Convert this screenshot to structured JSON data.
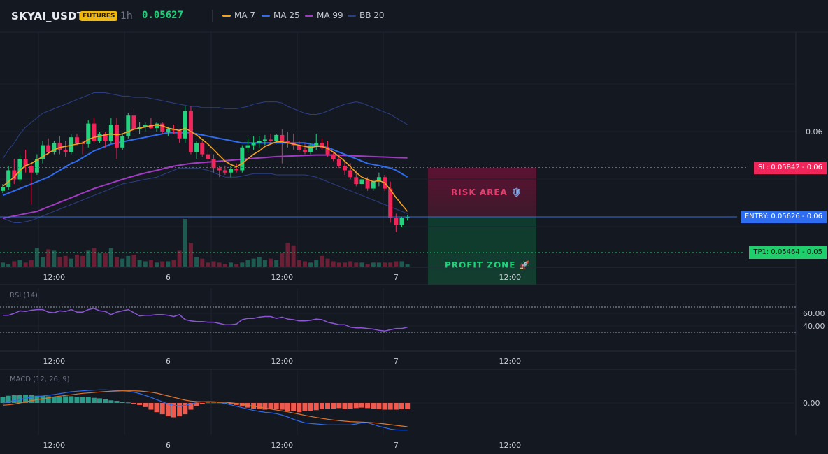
{
  "header": {
    "symbol": "SKYAI_USDT",
    "badge": "FUTURES",
    "timeframe": "1h",
    "last_price": "0.05627",
    "legend": [
      {
        "label": "MA 7",
        "color": "#f7a21b"
      },
      {
        "label": "MA 25",
        "color": "#2f6df0"
      },
      {
        "label": "MA 99",
        "color": "#a23bc4"
      },
      {
        "label": "BB 20",
        "color": "#2c3f86"
      }
    ]
  },
  "price_axis": {
    "labels": [
      "0.06"
    ]
  },
  "levels": {
    "sl": {
      "value": 0.05842,
      "tag": "SL: 0.05842 - 0.06",
      "color": "#f0265b"
    },
    "entry": {
      "value": 0.05626,
      "tag": "ENTRY: 0.05626 - 0.06",
      "color": "#2f6df0"
    },
    "tp1": {
      "value": 0.05464,
      "tag": "TP1: 0.05464 - 0.05",
      "color": "#1fcf6b"
    }
  },
  "zones": {
    "risk": {
      "label": "RISK AREA",
      "icon": "shield-icon"
    },
    "profit": {
      "label": "PROFIT ZONE",
      "icon": "rocket-icon"
    }
  },
  "time_axis": {
    "ticks": [
      {
        "i": 9,
        "label": "12:00"
      },
      {
        "i": 29,
        "label": "6"
      },
      {
        "i": 49,
        "label": "12:00"
      },
      {
        "i": 69,
        "label": "7"
      },
      {
        "i": 89,
        "label": "12:00"
      }
    ]
  },
  "rsi_panel": {
    "title": "RSI (14)",
    "axis": [
      "60.00",
      "40.00"
    ],
    "upper": 70,
    "lower": 30,
    "color": "#8b55d6"
  },
  "macd_panel": {
    "title": "MACD (12, 26, 9)",
    "axis": [
      "0.00"
    ],
    "macd_color": "#2f6df0",
    "signal_color": "#e0742a",
    "hist_pos_color": "#2a9d8a",
    "hist_neg_color": "#f05a4e"
  },
  "chart_data": {
    "type": "candlestick",
    "x_start_index": 0,
    "candles": [
      [
        0.0574,
        0.0577,
        0.0573,
        0.05755
      ],
      [
        0.05755,
        0.0585,
        0.05745,
        0.0583
      ],
      [
        0.0583,
        0.0588,
        0.0577,
        0.0579
      ],
      [
        0.0579,
        0.059,
        0.0578,
        0.0588
      ],
      [
        0.0588,
        0.0592,
        0.0582,
        0.0585
      ],
      [
        0.0585,
        0.0586,
        0.0568,
        0.0582
      ],
      [
        0.0582,
        0.059,
        0.0581,
        0.0588
      ],
      [
        0.0588,
        0.0596,
        0.0586,
        0.0594
      ],
      [
        0.0594,
        0.0597,
        0.059,
        0.0591
      ],
      [
        0.0591,
        0.0596,
        0.059,
        0.0595
      ],
      [
        0.0595,
        0.0598,
        0.059,
        0.0592
      ],
      [
        0.0592,
        0.0596,
        0.0589,
        0.0591
      ],
      [
        0.0591,
        0.0599,
        0.059,
        0.05975
      ],
      [
        0.05975,
        0.0599,
        0.0594,
        0.0595
      ],
      [
        0.0595,
        0.0596,
        0.059,
        0.05945
      ],
      [
        0.05945,
        0.0605,
        0.0593,
        0.06035
      ],
      [
        0.06035,
        0.0606,
        0.0595,
        0.0596
      ],
      [
        0.0596,
        0.06,
        0.0595,
        0.0599
      ],
      [
        0.0599,
        0.06,
        0.0593,
        0.0596
      ],
      [
        0.0596,
        0.0606,
        0.0595,
        0.0603
      ],
      [
        0.0603,
        0.0606,
        0.0588,
        0.0593
      ],
      [
        0.0593,
        0.0599,
        0.0592,
        0.0598
      ],
      [
        0.0598,
        0.0608,
        0.0597,
        0.0607
      ],
      [
        0.0607,
        0.061,
        0.06,
        0.0601
      ],
      [
        0.0601,
        0.0604,
        0.0599,
        0.0602
      ],
      [
        0.0602,
        0.0604,
        0.06,
        0.0603
      ],
      [
        0.0603,
        0.0606,
        0.0601,
        0.06015
      ],
      [
        0.06015,
        0.0604,
        0.06,
        0.06035
      ],
      [
        0.06035,
        0.0604,
        0.0599,
        0.06
      ],
      [
        0.06,
        0.0602,
        0.0598,
        0.0601
      ],
      [
        0.0601,
        0.0603,
        0.0599,
        0.06005
      ],
      [
        0.06005,
        0.0601,
        0.0595,
        0.0597
      ],
      [
        0.0597,
        0.0611,
        0.0595,
        0.0609
      ],
      [
        0.0609,
        0.0611,
        0.059,
        0.0591
      ],
      [
        0.0591,
        0.0596,
        0.0588,
        0.0595
      ],
      [
        0.0595,
        0.0596,
        0.0589,
        0.059
      ],
      [
        0.059,
        0.0592,
        0.0584,
        0.0588
      ],
      [
        0.0588,
        0.059,
        0.0582,
        0.0584
      ],
      [
        0.0584,
        0.0585,
        0.058,
        0.0583
      ],
      [
        0.0583,
        0.0585,
        0.0581,
        0.0582
      ],
      [
        0.0582,
        0.0585,
        0.058,
        0.05835
      ],
      [
        0.05835,
        0.0586,
        0.0582,
        0.0583
      ],
      [
        0.0583,
        0.0594,
        0.0582,
        0.0593
      ],
      [
        0.0593,
        0.0597,
        0.0591,
        0.0594
      ],
      [
        0.0594,
        0.0598,
        0.0592,
        0.0595
      ],
      [
        0.0595,
        0.0598,
        0.0593,
        0.0596
      ],
      [
        0.0596,
        0.05985,
        0.0594,
        0.05965
      ],
      [
        0.05965,
        0.0599,
        0.0595,
        0.0596
      ],
      [
        0.0596,
        0.0599,
        0.0595,
        0.05985
      ],
      [
        0.05985,
        0.0601,
        0.0586,
        0.0596
      ],
      [
        0.0596,
        0.06,
        0.0593,
        0.0595
      ],
      [
        0.0595,
        0.0599,
        0.0592,
        0.0594
      ],
      [
        0.0594,
        0.0596,
        0.0591,
        0.0592
      ],
      [
        0.0592,
        0.0595,
        0.059,
        0.0591
      ],
      [
        0.0591,
        0.0595,
        0.059,
        0.0594
      ],
      [
        0.0594,
        0.0599,
        0.0592,
        0.0595
      ],
      [
        0.0595,
        0.0597,
        0.0592,
        0.0593
      ],
      [
        0.0593,
        0.0596,
        0.0589,
        0.059
      ],
      [
        0.059,
        0.0591,
        0.0587,
        0.0588
      ],
      [
        0.0588,
        0.059,
        0.0584,
        0.0585
      ],
      [
        0.0585,
        0.0587,
        0.0581,
        0.0583
      ],
      [
        0.0583,
        0.0586,
        0.0579,
        0.058
      ],
      [
        0.058,
        0.0583,
        0.0576,
        0.0577
      ],
      [
        0.0577,
        0.058,
        0.0574,
        0.0579
      ],
      [
        0.0579,
        0.058,
        0.0574,
        0.0575
      ],
      [
        0.0575,
        0.0579,
        0.0574,
        0.0578
      ],
      [
        0.0578,
        0.0582,
        0.0576,
        0.058
      ],
      [
        0.058,
        0.0581,
        0.0574,
        0.0575
      ],
      [
        0.0575,
        0.0578,
        0.056,
        0.0562
      ],
      [
        0.0562,
        0.0564,
        0.0556,
        0.0559
      ],
      [
        0.0559,
        0.05625,
        0.0558,
        0.0562
      ],
      [
        0.0562,
        0.05635,
        0.0561,
        0.05627
      ]
    ],
    "ma7": [
      0.0576,
      0.0578,
      0.058,
      0.0583,
      0.0585,
      0.0586,
      0.05875,
      0.0589,
      0.05905,
      0.0592,
      0.0593,
      0.05935,
      0.0594,
      0.05945,
      0.0595,
      0.05965,
      0.05975,
      0.0598,
      0.05985,
      0.0599,
      0.05985,
      0.0599,
      0.06,
      0.0601,
      0.06015,
      0.0602,
      0.06025,
      0.0603,
      0.06025,
      0.06015,
      0.0601,
      0.06005,
      0.06015,
      0.06,
      0.05985,
      0.05965,
      0.05945,
      0.0592,
      0.05895,
      0.0587,
      0.05855,
      0.05845,
      0.0586,
      0.0588,
      0.059,
      0.05915,
      0.05935,
      0.05945,
      0.05955,
      0.05955,
      0.0595,
      0.05945,
      0.0594,
      0.05935,
      0.0593,
      0.05935,
      0.05935,
      0.05925,
      0.0591,
      0.0589,
      0.0587,
      0.05845,
      0.0582,
      0.058,
      0.0579,
      0.0578,
      0.05785,
      0.05775,
      0.05745,
      0.0571,
      0.0568,
      0.0565
    ],
    "ma25": [
      0.0572,
      0.0573,
      0.0574,
      0.0575,
      0.0576,
      0.0577,
      0.0578,
      0.0579,
      0.058,
      0.05815,
      0.0583,
      0.05845,
      0.0586,
      0.0587,
      0.05885,
      0.059,
      0.05915,
      0.05925,
      0.05935,
      0.05945,
      0.0595,
      0.05955,
      0.0596,
      0.05965,
      0.0597,
      0.05975,
      0.0598,
      0.05985,
      0.0599,
      0.05995,
      0.05995,
      0.05995,
      0.05995,
      0.05995,
      0.0599,
      0.05985,
      0.0598,
      0.05975,
      0.0597,
      0.05965,
      0.0596,
      0.05955,
      0.0595,
      0.0595,
      0.0595,
      0.0595,
      0.0595,
      0.0595,
      0.0595,
      0.0595,
      0.0595,
      0.0595,
      0.0595,
      0.0595,
      0.05945,
      0.0594,
      0.05935,
      0.0593,
      0.0592,
      0.0591,
      0.059,
      0.0589,
      0.0588,
      0.0587,
      0.0586,
      0.05855,
      0.0585,
      0.05845,
      0.0584,
      0.0583,
      0.05815,
      0.058
    ],
    "ma99": [
      0.0562,
      0.05625,
      0.0563,
      0.05635,
      0.0564,
      0.05645,
      0.0565,
      0.0566,
      0.0567,
      0.0568,
      0.0569,
      0.057,
      0.0571,
      0.0572,
      0.0573,
      0.0574,
      0.0575,
      0.05758,
      0.05766,
      0.05774,
      0.05782,
      0.0579,
      0.05798,
      0.05805,
      0.05812,
      0.05818,
      0.05824,
      0.0583,
      0.05836,
      0.05842,
      0.05848,
      0.05852,
      0.05856,
      0.0586,
      0.05862,
      0.05864,
      0.05866,
      0.05868,
      0.0587,
      0.05872,
      0.05874,
      0.05876,
      0.05878,
      0.0588,
      0.05882,
      0.05884,
      0.05886,
      0.05888,
      0.0589,
      0.05891,
      0.05892,
      0.05893,
      0.05894,
      0.05895,
      0.05896,
      0.05897,
      0.05897,
      0.05897,
      0.05897,
      0.05896,
      0.05895,
      0.05894,
      0.05893,
      0.05892,
      0.05891,
      0.0589,
      0.05889,
      0.05888,
      0.05887,
      0.05886,
      0.05885,
      0.05884
    ],
    "bb_upper": [
      0.0588,
      0.0592,
      0.0595,
      0.0599,
      0.0602,
      0.0604,
      0.0606,
      0.0608,
      0.0609,
      0.061,
      0.0611,
      0.0612,
      0.0613,
      0.0614,
      0.0615,
      0.0616,
      0.0617,
      0.0617,
      0.0617,
      0.06165,
      0.0616,
      0.06155,
      0.06155,
      0.0615,
      0.0615,
      0.0615,
      0.06145,
      0.0614,
      0.06135,
      0.0613,
      0.06125,
      0.0612,
      0.06115,
      0.0611,
      0.0611,
      0.06105,
      0.06105,
      0.06105,
      0.06105,
      0.061,
      0.061,
      0.061,
      0.06105,
      0.0611,
      0.0612,
      0.06125,
      0.0613,
      0.0613,
      0.0613,
      0.06125,
      0.0611,
      0.061,
      0.0609,
      0.0608,
      0.06075,
      0.06075,
      0.0608,
      0.0609,
      0.061,
      0.0611,
      0.0612,
      0.06125,
      0.0613,
      0.06125,
      0.06115,
      0.06105,
      0.06095,
      0.06085,
      0.06075,
      0.0606,
      0.06045,
      0.0603
    ],
    "bb_lower": [
      0.0562,
      0.0561,
      0.056,
      0.056,
      0.05605,
      0.0561,
      0.0562,
      0.0563,
      0.0564,
      0.0565,
      0.0566,
      0.0567,
      0.0568,
      0.0569,
      0.057,
      0.0571,
      0.0572,
      0.0573,
      0.0574,
      0.0575,
      0.0576,
      0.0577,
      0.05775,
      0.0578,
      0.05785,
      0.0579,
      0.05795,
      0.058,
      0.0581,
      0.0582,
      0.0583,
      0.0584,
      0.0584,
      0.0584,
      0.0584,
      0.05835,
      0.0583,
      0.0582,
      0.0581,
      0.058,
      0.058,
      0.058,
      0.05805,
      0.0581,
      0.05815,
      0.05815,
      0.05815,
      0.05815,
      0.0581,
      0.0581,
      0.0581,
      0.0581,
      0.0581,
      0.0581,
      0.05805,
      0.058,
      0.0579,
      0.0578,
      0.0577,
      0.0576,
      0.0575,
      0.0574,
      0.0573,
      0.0572,
      0.0571,
      0.057,
      0.0569,
      0.0568,
      0.0567,
      0.0566,
      0.0565,
      0.0564
    ],
    "volume": [
      3,
      2,
      4,
      5,
      3,
      5,
      14,
      7,
      13,
      12,
      7,
      8,
      6,
      9,
      8,
      12,
      14,
      10,
      10,
      14,
      7,
      6,
      8,
      9,
      5,
      4,
      5,
      3,
      4,
      4,
      5,
      12,
      36,
      18,
      7,
      6,
      3,
      4,
      3,
      2,
      3,
      2,
      3,
      5,
      6,
      7,
      5,
      6,
      5,
      10,
      18,
      16,
      5,
      4,
      3,
      5,
      8,
      6,
      4,
      3,
      3,
      4,
      3,
      3,
      2,
      3,
      3,
      3,
      3,
      4,
      4,
      2
    ],
    "rsi": [
      57,
      57,
      60,
      64,
      63,
      65,
      66,
      66,
      62,
      61,
      64,
      63,
      66,
      62,
      62,
      66,
      68,
      64,
      63,
      58,
      62,
      64,
      66,
      61,
      56,
      57,
      57,
      58,
      58,
      57,
      55,
      58,
      50,
      48,
      47,
      47,
      46,
      46,
      44,
      42,
      42,
      43,
      50,
      52,
      52,
      54,
      55,
      55,
      52,
      54,
      51,
      50,
      48,
      48,
      49,
      51,
      50,
      46,
      44,
      42,
      42,
      38,
      37,
      37,
      36,
      35,
      33,
      32,
      34,
      36,
      36,
      38
    ],
    "macd": [
      0.0,
      5e-05,
      0.0001,
      0.00015,
      0.0002,
      0.00024,
      0.00027,
      0.0003,
      0.00033,
      0.00036,
      0.0004,
      0.00044,
      0.00048,
      0.0005,
      0.00052,
      0.00054,
      0.00055,
      0.00056,
      0.00056,
      0.00055,
      0.00054,
      0.00052,
      0.0005,
      0.00046,
      0.0004,
      0.00032,
      0.00024,
      0.00014,
      5e-05,
      -5e-05,
      -0.0001,
      -0.00012,
      -0.0001,
      -5e-05,
      2e-05,
      5e-05,
      6e-05,
      5e-05,
      2e-05,
      -2e-05,
      -8e-05,
      -0.00014,
      -0.0002,
      -0.00026,
      -0.00032,
      -0.00036,
      -0.0004,
      -0.00042,
      -0.00046,
      -0.00052,
      -0.0006,
      -0.0007,
      -0.00078,
      -0.00085,
      -0.00088,
      -0.0009,
      -0.00092,
      -0.00094,
      -0.00094,
      -0.00094,
      -0.00094,
      -0.00094,
      -0.0009,
      -0.00085,
      -0.00085,
      -0.00092,
      -0.001,
      -0.00106,
      -0.00112,
      -0.00115,
      -0.00116,
      -0.00116
    ],
    "macd_signal": [
      -0.0001,
      -8e-05,
      -5e-05,
      0.0,
      5e-05,
      0.0001,
      0.00014,
      0.00018,
      0.00022,
      0.00026,
      0.00029,
      0.00032,
      0.00035,
      0.00038,
      0.00041,
      0.00043,
      0.00045,
      0.00047,
      0.00049,
      0.0005,
      0.00051,
      0.00052,
      0.00052,
      0.00052,
      0.00051,
      0.00049,
      0.00046,
      0.00042,
      0.00036,
      0.0003,
      0.00024,
      0.00018,
      0.00012,
      8e-05,
      6e-05,
      5e-05,
      5e-05,
      5e-05,
      4e-05,
      3e-05,
      1e-05,
      -2e-05,
      -6e-05,
      -0.0001,
      -0.00014,
      -0.00018,
      -0.00022,
      -0.00026,
      -0.0003,
      -0.00034,
      -0.00038,
      -0.00043,
      -0.00048,
      -0.00053,
      -0.00058,
      -0.00062,
      -0.00066,
      -0.0007,
      -0.00073,
      -0.00076,
      -0.00078,
      -0.0008,
      -0.00081,
      -0.00082,
      -0.00083,
      -0.00085,
      -0.00087,
      -0.0009,
      -0.00093,
      -0.00096,
      -0.00099,
      -0.00102
    ],
    "macd_hist": [
      0.00012,
      0.00014,
      0.00015,
      0.00015,
      0.00016,
      0.00015,
      0.00014,
      0.00014,
      0.00013,
      0.00012,
      0.00012,
      0.00013,
      0.00013,
      0.00012,
      0.00011,
      0.00011,
      0.0001,
      9e-05,
      7e-05,
      5e-05,
      4e-05,
      2e-05,
      1e-05,
      -1e-05,
      -4e-05,
      -8e-05,
      -0.00013,
      -0.00018,
      -0.00022,
      -0.00026,
      -0.00028,
      -0.00026,
      -0.00022,
      -0.00013,
      -6e-05,
      -2e-05,
      1e-05,
      1e-05,
      1e-05,
      0.0,
      -2e-05,
      -4e-05,
      -7e-05,
      -9e-05,
      -0.00011,
      -0.00012,
      -0.00013,
      -0.00012,
      -0.00012,
      -0.00013,
      -0.00015,
      -0.00016,
      -0.00018,
      -0.00016,
      -0.00015,
      -0.00014,
      -0.00012,
      -0.00011,
      -0.00011,
      -0.0001,
      -0.00012,
      -0.00011,
      -0.0001,
      -9e-05,
      -0.0001,
      -0.00011,
      -0.00012,
      -0.00013,
      -0.00013,
      -0.00013,
      -0.00012,
      -0.00012
    ]
  }
}
